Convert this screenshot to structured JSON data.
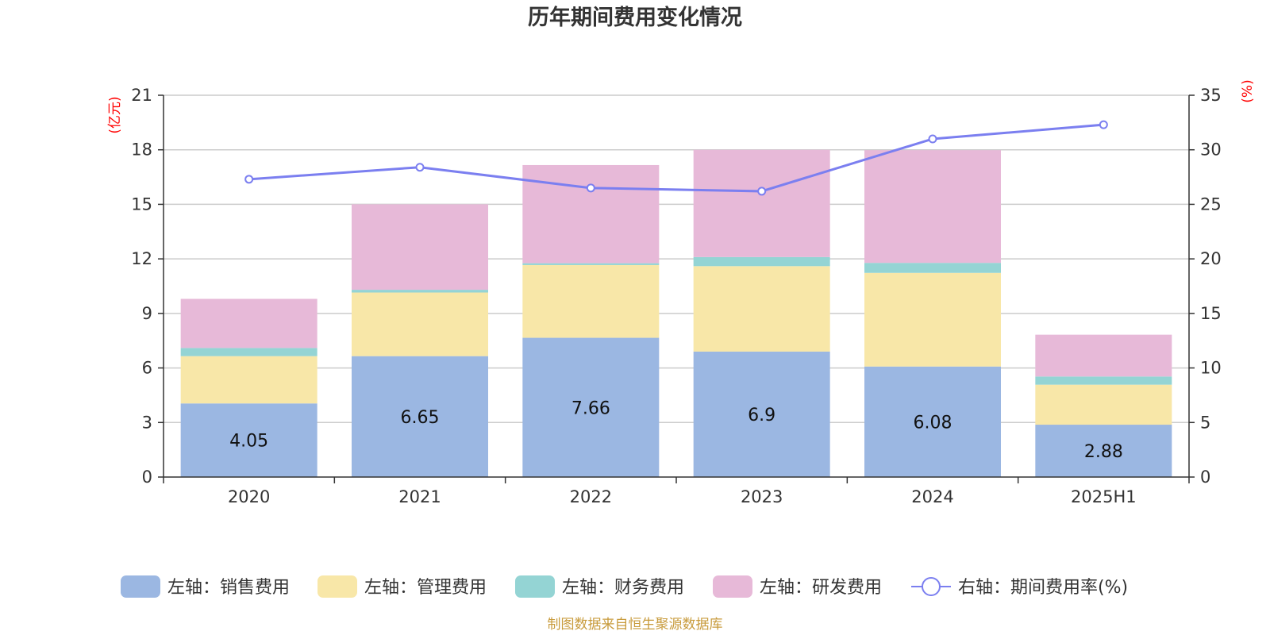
{
  "chart_data": {
    "type": "bar",
    "stacked": true,
    "title": "历年期间费用变化情况",
    "categories": [
      "2020",
      "2021",
      "2022",
      "2023",
      "2024",
      "2025H1"
    ],
    "left_axis": {
      "unit": "(亿元)",
      "ylim": [
        0,
        21
      ],
      "ticks": [
        "0",
        "3",
        "6",
        "9",
        "12",
        "15",
        "18",
        "21"
      ]
    },
    "right_axis": {
      "unit": "(%)",
      "ylim": [
        0,
        35
      ],
      "ticks": [
        "0",
        "5",
        "10",
        "15",
        "20",
        "25",
        "30",
        "35"
      ]
    },
    "series": [
      {
        "name": "左轴：销售费用",
        "axis": "left",
        "color": "#9bb7e2",
        "values": [
          4.05,
          6.65,
          7.66,
          6.9,
          6.08,
          2.88
        ],
        "data_labels": [
          "4.05",
          "6.65",
          "7.66",
          "6.9",
          "6.08",
          "2.88"
        ]
      },
      {
        "name": "左轴：管理费用",
        "axis": "left",
        "color": "#f8e7a8",
        "values": [
          2.6,
          3.5,
          4.0,
          4.7,
          5.15,
          2.2
        ]
      },
      {
        "name": "左轴：财务费用",
        "axis": "left",
        "color": "#94d4d4",
        "values": [
          0.45,
          0.15,
          0.1,
          0.5,
          0.55,
          0.45
        ]
      },
      {
        "name": "左轴：研发费用",
        "axis": "left",
        "color": "#e7b9d8",
        "values": [
          2.7,
          4.7,
          5.4,
          5.9,
          6.2,
          2.3
        ]
      },
      {
        "name": "右轴：期间费用率(%)",
        "axis": "right",
        "type": "line",
        "color": "#7b7ff0",
        "values": [
          27.3,
          28.4,
          26.5,
          26.2,
          31.0,
          32.3
        ]
      }
    ],
    "grid": true,
    "legend_position": "bottom"
  },
  "footer": {
    "source": "制图数据来自恒生聚源数据库"
  }
}
